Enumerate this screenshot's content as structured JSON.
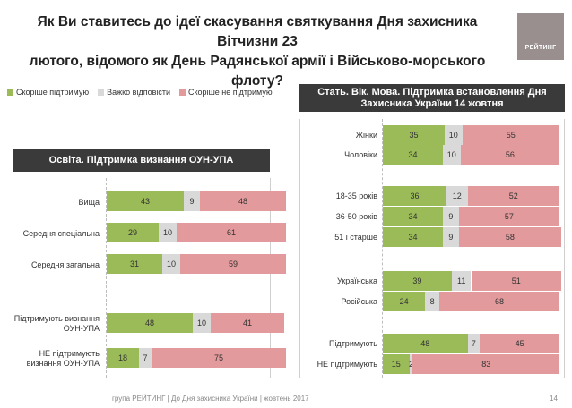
{
  "title": {
    "line1": "Як Ви ставитесь до ідеї скасування святкування Дня захисника Вітчизни 23",
    "line2": "лютого, відомого як День Радянської армії і Військово-морського флоту?"
  },
  "logo_text": "РЕЙТИНГ",
  "colors": {
    "support": "#9bbb59",
    "hard_to_say": "#d9d9d9",
    "oppose": "#e39a9c"
  },
  "chart_data": [
    {
      "type": "bar",
      "orientation": "horizontal",
      "stacked": true,
      "title": "Освіта. Підтримка визнання ОУН-УПА",
      "legend": [
        "Скоріше підтримую",
        "Важко відповісти",
        "Скоріше не підтримую"
      ],
      "categories": [
        "Вища",
        "Середня спеціальна",
        "Середня загальна",
        "Підтримують визнання ОУН-УПА",
        "НЕ підтримують визнання ОУН-УПА"
      ],
      "series": [
        {
          "name": "Скоріше підтримую",
          "values": [
            43,
            29,
            31,
            48,
            18
          ]
        },
        {
          "name": "Важко відповісти",
          "values": [
            9,
            10,
            10,
            10,
            7
          ]
        },
        {
          "name": "Скоріше не підтримую",
          "values": [
            48,
            61,
            59,
            41,
            75
          ]
        }
      ],
      "xlim": [
        0,
        100
      ]
    },
    {
      "type": "bar",
      "orientation": "horizontal",
      "stacked": true,
      "title": "Стать. Вік. Мова. Підтримка встановлення Дня Захисника України 14 жовтня",
      "legend": [
        "Скоріше підтримую",
        "Важко відповісти",
        "Скоріше не підтримую"
      ],
      "categories": [
        "Жінки",
        "Чоловіки",
        "18-35 років",
        "36-50 років",
        "51 і старше",
        "Українська",
        "Російська",
        "Підтримують",
        "НЕ підтримують"
      ],
      "series": [
        {
          "name": "Скоріше підтримую",
          "values": [
            35,
            34,
            36,
            34,
            34,
            39,
            24,
            48,
            15
          ]
        },
        {
          "name": "Важко відповісти",
          "values": [
            10,
            10,
            12,
            9,
            9,
            11,
            8,
            7,
            2
          ]
        },
        {
          "name": "Скоріше не підтримую",
          "values": [
            55,
            56,
            52,
            57,
            58,
            51,
            68,
            45,
            83
          ]
        }
      ],
      "xlim": [
        0,
        100
      ]
    }
  ],
  "footer": "група РЕЙТИНГ  |  До Дня захисника України  |  жовтень 2017",
  "page_number": "14"
}
